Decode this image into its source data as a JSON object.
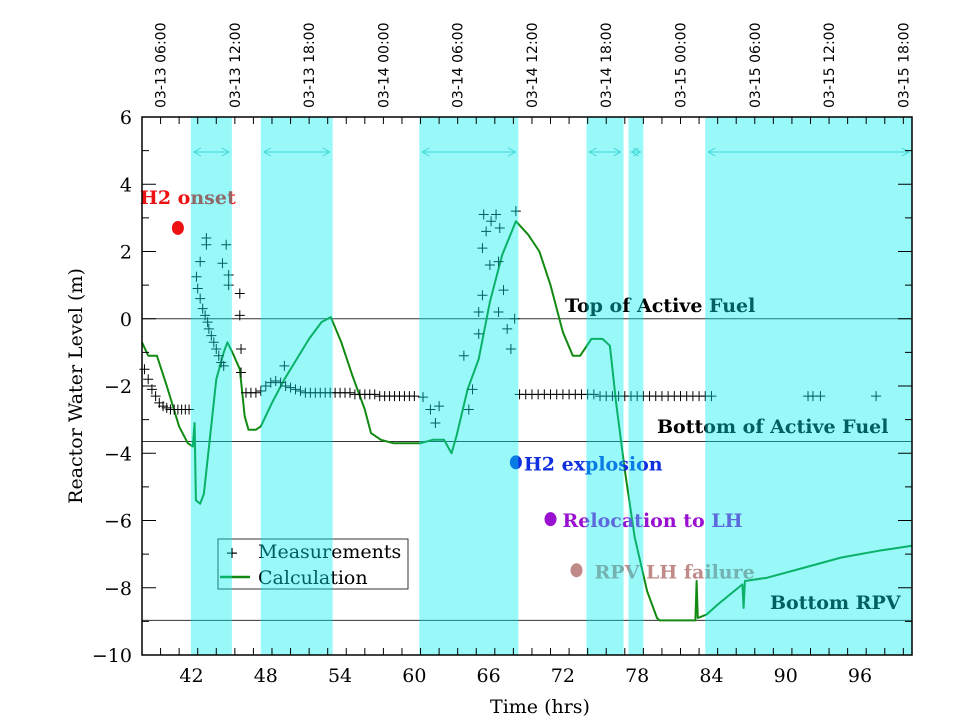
{
  "chart_data": {
    "type": "line",
    "xlabel": "Time (hrs)",
    "ylabel": "Reactor Water Level (m)",
    "xlim": [
      38,
      100.2
    ],
    "ylim": [
      -10,
      6
    ],
    "x_ticks": [
      42,
      48,
      54,
      60,
      66,
      72,
      78,
      84,
      90,
      96
    ],
    "y_ticks": [
      6,
      4,
      2,
      0,
      -2,
      -4,
      -6,
      -8,
      -10
    ],
    "top_axis": {
      "hours": [
        39.5,
        45.5,
        51.5,
        57.5,
        63.5,
        69.5,
        75.5,
        81.5,
        87.5,
        93.5,
        99.5
      ],
      "labels": [
        "03-13 06:00",
        "03-13 12:00",
        "03-13 18:00",
        "03-14 00:00",
        "03-14 06:00",
        "03-14 12:00",
        "03-14 18:00",
        "03-15 00:00",
        "03-15 06:00",
        "03-15 12:00",
        "03-15 18:00"
      ]
    },
    "legend": {
      "placement": "lower-left",
      "entries": [
        "Measurements",
        "Calculation"
      ]
    },
    "colors": {
      "measurements": "#000000",
      "calculation": "#128a12",
      "bands": "#00eeee"
    },
    "shaded_intervals": [
      [
        41.95,
        45.26
      ],
      [
        47.6,
        53.4
      ],
      [
        60.4,
        68.4
      ],
      [
        73.9,
        76.9
      ],
      [
        77.3,
        78.5
      ],
      [
        83.5,
        100.2
      ]
    ],
    "reference_lines": [
      {
        "y": 0,
        "label": "Top of Active Fuel"
      },
      {
        "y": -3.65,
        "label": "Bottom of Active Fuel"
      },
      {
        "y": -8.97,
        "label": "Bottom RPV"
      }
    ],
    "events": [
      {
        "label": "H2 onset",
        "x": 40.9,
        "y": 2.7,
        "color": "#ee1111"
      },
      {
        "label": "H2 explosion",
        "x": 68.2,
        "y": -4.27,
        "color": "#1030e0"
      },
      {
        "label": "Relocation to LH",
        "x": 71.0,
        "y": -5.96,
        "color": "#9a10d0"
      },
      {
        "label": "RPV LH failure",
        "x": 73.1,
        "y": -7.48,
        "color": "#c08a88"
      }
    ],
    "series": [
      {
        "name": "Calculation",
        "style": "line",
        "x": [
          38,
          38.5,
          39.2,
          40,
          41,
          41.7,
          42.1,
          42.25,
          42.35,
          42.7,
          43,
          43.5,
          44,
          44.6,
          44.9,
          45.3,
          45.9,
          46.3,
          46.6,
          47.2,
          47.6,
          48.5,
          49.5,
          50.5,
          51.5,
          52.5,
          53.25,
          54.1,
          55,
          56,
          56.5,
          57.3,
          58.3,
          59.5,
          60.5,
          61.5,
          62.4,
          63,
          63.4,
          64.3,
          65.2,
          66.1,
          67.1,
          68.2,
          69.2,
          70.1,
          71,
          72,
          72.8,
          73.4,
          74.3,
          75.2,
          75.8,
          76.3,
          77,
          77.8,
          78.8,
          79.6,
          79.8,
          82.7,
          82.8,
          82.9,
          83.6,
          84.5,
          85.5,
          86.5,
          86.6,
          86.7,
          88.5,
          91.5,
          94.5,
          97.5,
          100.2
        ],
        "y": [
          -0.7,
          -1.1,
          -1.1,
          -2,
          -3.2,
          -3.7,
          -3.8,
          -3.1,
          -5.4,
          -5.5,
          -5.2,
          -3.5,
          -1.8,
          -1.0,
          -0.7,
          -1.0,
          -1.5,
          -2.9,
          -3.3,
          -3.3,
          -3.2,
          -2.5,
          -1.8,
          -1.2,
          -0.6,
          -0.1,
          0.05,
          -0.7,
          -1.7,
          -2.7,
          -3.4,
          -3.6,
          -3.7,
          -3.7,
          -3.7,
          -3.6,
          -3.6,
          -4.0,
          -3.5,
          -2.1,
          -1.2,
          0.5,
          1.9,
          2.9,
          2.5,
          2.0,
          1.0,
          -0.4,
          -1.1,
          -1.1,
          -0.6,
          -0.6,
          -0.8,
          -2.5,
          -4.5,
          -6.5,
          -8.1,
          -8.9,
          -8.97,
          -8.97,
          -7.8,
          -8.9,
          -8.8,
          -8.5,
          -8.2,
          -7.9,
          -8.6,
          -7.8,
          -7.7,
          -7.4,
          -7.1,
          -6.9,
          -6.75
        ]
      },
      {
        "name": "Measurements",
        "style": "plus",
        "x": [
          38.2,
          38.5,
          38.8,
          39.1,
          39.4,
          39.7,
          40,
          40.3,
          40.6,
          40.9,
          41.2,
          41.5,
          41.8,
          42.4,
          42.7,
          43.2,
          43.2,
          44.8,
          44.5,
          45.0,
          42.5,
          42.7,
          42.9,
          43.1,
          43.3,
          43.4,
          43.6,
          43.8,
          44.0,
          44.2,
          44.4,
          44.6,
          45.9,
          45.9,
          46.0,
          46.0,
          45.0,
          46.4,
          46.8,
          47.2,
          47.6,
          48.0,
          48.4,
          48.8,
          49.2,
          49.6,
          50.0,
          50.4,
          50.8,
          51.2,
          51.6,
          52.0,
          52.4,
          52.8,
          53.2,
          53.6,
          54.0,
          54.4,
          54.8,
          55.2,
          55.6,
          56.0,
          56.4,
          56.8,
          57.2,
          57.6,
          58.0,
          58.4,
          58.8,
          59.2,
          59.6,
          60.0,
          49.5,
          60.7,
          61.3,
          62.0,
          61.7,
          64.0,
          65.2,
          65.2,
          65.5,
          65.5,
          65.6,
          66.6,
          66.1,
          66.8,
          66.8,
          67.2,
          67.5,
          67.8,
          68.1,
          68.2,
          64.7,
          64.4,
          66.2,
          66.9,
          65.8,
          68.5,
          69.0,
          69.5,
          70.0,
          70.5,
          71.0,
          71.5,
          72.0,
          72.5,
          73.0,
          73.5,
          74.0,
          74.5,
          75.0,
          75.5,
          76.0,
          76.5,
          77.0,
          77.5,
          78.0,
          78.5,
          79.0,
          79.5,
          80.0,
          80.5,
          81.0,
          81.5,
          82.0,
          82.5,
          83.0,
          83.5,
          84.0,
          91.8,
          92.2,
          92.8,
          97.3
        ],
        "y": [
          -1.5,
          -1.8,
          -2.1,
          -2.3,
          -2.5,
          -2.6,
          -2.65,
          -2.7,
          -2.7,
          -2.7,
          -2.7,
          -2.7,
          -2.7,
          1.25,
          1.7,
          2.4,
          2.2,
          2.2,
          1.65,
          1.3,
          0.9,
          0.6,
          0.3,
          0.1,
          -0.1,
          -0.3,
          -0.5,
          -0.7,
          -0.9,
          -1.1,
          -1.3,
          -1.4,
          0.75,
          0.1,
          -0.9,
          -1.6,
          1.0,
          -2.2,
          -2.2,
          -2.2,
          -2.15,
          -2.0,
          -1.9,
          -1.85,
          -1.9,
          -2.0,
          -2.05,
          -2.1,
          -2.15,
          -2.2,
          -2.2,
          -2.2,
          -2.2,
          -2.2,
          -2.2,
          -2.2,
          -2.2,
          -2.2,
          -2.2,
          -2.25,
          -2.25,
          -2.25,
          -2.25,
          -2.25,
          -2.3,
          -2.3,
          -2.3,
          -2.3,
          -2.3,
          -2.3,
          -2.3,
          -2.3,
          -1.4,
          -2.33,
          -2.7,
          -2.6,
          -3.1,
          -1.1,
          -0.45,
          0.2,
          0.7,
          2.1,
          3.1,
          3.1,
          1.6,
          1.7,
          0.2,
          0.85,
          -0.3,
          -0.9,
          0.0,
          3.2,
          -2.1,
          -2.7,
          2.9,
          2.7,
          2.6,
          -2.25,
          -2.25,
          -2.25,
          -2.25,
          -2.25,
          -2.25,
          -2.25,
          -2.25,
          -2.25,
          -2.25,
          -2.25,
          -2.25,
          -2.25,
          -2.3,
          -2.3,
          -2.3,
          -2.3,
          -2.3,
          -2.3,
          -2.3,
          -2.3,
          -2.3,
          -2.3,
          -2.3,
          -2.3,
          -2.3,
          -2.3,
          -2.3,
          -2.3,
          -2.3,
          -2.3,
          -2.3,
          -2.3,
          -2.3,
          -2.3,
          -2.3
        ]
      }
    ]
  }
}
